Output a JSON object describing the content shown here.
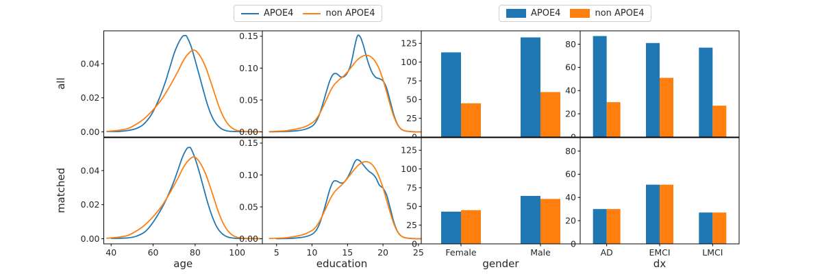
{
  "colors": {
    "apoe4": "#1f77b4",
    "non_apoe4": "#ff7f0e",
    "text": "#262626",
    "spine": "#000000",
    "background": "#ffffff"
  },
  "legend_lines": {
    "items": [
      {
        "label": "APOE4",
        "color": "#1f77b4"
      },
      {
        "label": "non APOE4",
        "color": "#ff7f0e"
      }
    ]
  },
  "legend_bars": {
    "items": [
      {
        "label": "APOE4",
        "color": "#1f77b4"
      },
      {
        "label": "non APOE4",
        "color": "#ff7f0e"
      }
    ]
  },
  "rows": [
    {
      "label": "all"
    },
    {
      "label": "matched"
    }
  ],
  "chart_data": [
    {
      "type": "line",
      "row": "all",
      "col": "age",
      "xlabel": "",
      "xlim": [
        36.5,
        112
      ],
      "ylim": [
        -0.003,
        0.0593
      ],
      "yticks": [
        {
          "v": 0,
          "label": "0.00"
        },
        {
          "v": 0.02,
          "label": "0.02"
        },
        {
          "v": 0.04,
          "label": "0.04"
        }
      ],
      "xticks": [],
      "series": [
        {
          "name": "APOE4",
          "color": "#1f77b4",
          "x": [
            38,
            44,
            48,
            52,
            55,
            58,
            60,
            62,
            64,
            66,
            68,
            70,
            72,
            74,
            75.2,
            76,
            78,
            80,
            82,
            84,
            86,
            88,
            90,
            92,
            94,
            96,
            100,
            105,
            111
          ],
          "y": [
            0.0002,
            0.0003,
            0.0008,
            0.002,
            0.004,
            0.008,
            0.012,
            0.017,
            0.023,
            0.03,
            0.038,
            0.046,
            0.052,
            0.056,
            0.0565,
            0.056,
            0.0505,
            0.042,
            0.033,
            0.024,
            0.0155,
            0.009,
            0.0048,
            0.0023,
            0.001,
            0.0004,
            0.0002,
            0.0001,
            0.0001
          ]
        },
        {
          "name": "non APOE4",
          "color": "#ff7f0e",
          "x": [
            38,
            44,
            48,
            52,
            56,
            60,
            64,
            68,
            72,
            74,
            76,
            78,
            79.5,
            81,
            83,
            85,
            87,
            89,
            91,
            93,
            95,
            97,
            99,
            101,
            105,
            111
          ],
          "y": [
            0.0003,
            0.001,
            0.002,
            0.0045,
            0.008,
            0.013,
            0.019,
            0.027,
            0.036,
            0.041,
            0.0448,
            0.0473,
            0.048,
            0.0468,
            0.0432,
            0.038,
            0.031,
            0.0235,
            0.016,
            0.01,
            0.0056,
            0.0028,
            0.0013,
            0.0006,
            0.0002,
            0.0001
          ]
        }
      ]
    },
    {
      "type": "line",
      "row": "all",
      "col": "education",
      "xlabel": "",
      "xlim": [
        3.0,
        25.4
      ],
      "ylim": [
        -0.008,
        0.1585
      ],
      "yticks": [
        {
          "v": 0,
          "label": "0.00"
        },
        {
          "v": 0.05,
          "label": "0.05"
        },
        {
          "v": 0.1,
          "label": "0.10"
        },
        {
          "v": 0.15,
          "label": "0.15"
        }
      ],
      "xticks": [],
      "series": [
        {
          "name": "APOE4",
          "color": "#1f77b4",
          "x": [
            4,
            6.5,
            8,
            9,
            10,
            10.5,
            11,
            11.5,
            12,
            12.5,
            13,
            13.5,
            14,
            14.5,
            15,
            15.5,
            16,
            16.4,
            16.8,
            17.2,
            17.6,
            18,
            18.5,
            19,
            19.5,
            20,
            20.5,
            21,
            21.5,
            22,
            22.5,
            23,
            24,
            25.4
          ],
          "y": [
            0.0002,
            0.0008,
            0.002,
            0.004,
            0.009,
            0.015,
            0.026,
            0.043,
            0.062,
            0.08,
            0.0905,
            0.091,
            0.0865,
            0.0865,
            0.093,
            0.107,
            0.133,
            0.1505,
            0.149,
            0.137,
            0.121,
            0.106,
            0.0925,
            0.0855,
            0.0835,
            0.08,
            0.069,
            0.049,
            0.028,
            0.013,
            0.005,
            0.002,
            0.0004,
            0.0001
          ]
        },
        {
          "name": "non APOE4",
          "color": "#ff7f0e",
          "x": [
            4,
            6,
            7,
            8,
            9,
            10,
            10.5,
            11,
            11.5,
            12,
            12.5,
            13,
            13.5,
            14,
            14.5,
            15,
            15.5,
            16,
            16.5,
            17,
            17.5,
            18,
            18.5,
            19,
            19.5,
            20,
            20.5,
            21,
            21.5,
            22,
            22.5,
            23,
            24,
            25.4
          ],
          "y": [
            0.0005,
            0.0015,
            0.003,
            0.005,
            0.008,
            0.014,
            0.019,
            0.027,
            0.038,
            0.05,
            0.062,
            0.072,
            0.0785,
            0.0835,
            0.088,
            0.094,
            0.101,
            0.108,
            0.114,
            0.118,
            0.12,
            0.1195,
            0.116,
            0.109,
            0.098,
            0.082,
            0.063,
            0.043,
            0.025,
            0.0125,
            0.005,
            0.002,
            0.0005,
            0.0001
          ]
        }
      ]
    },
    {
      "type": "bar",
      "row": "all",
      "col": "gender",
      "xlabel": "",
      "categories": [
        "Female",
        "Male"
      ],
      "show_xticklabels": false,
      "ylim": [
        0,
        141.75
      ],
      "yticks": [
        {
          "v": 0,
          "label": "0"
        },
        {
          "v": 25,
          "label": "25"
        },
        {
          "v": 50,
          "label": "50"
        },
        {
          "v": 75,
          "label": "75"
        },
        {
          "v": 100,
          "label": "100"
        },
        {
          "v": 125,
          "label": "125"
        }
      ],
      "series": [
        {
          "name": "APOE4",
          "color": "#1f77b4",
          "values": [
            113,
            133
          ]
        },
        {
          "name": "non APOE4",
          "color": "#ff7f0e",
          "values": [
            45,
            60
          ]
        }
      ]
    },
    {
      "type": "bar",
      "row": "all",
      "col": "dx",
      "xlabel": "",
      "categories": [
        "AD",
        "EMCI",
        "LMCI"
      ],
      "show_xticklabels": false,
      "ylim": [
        0,
        91.5
      ],
      "yticks": [
        {
          "v": 0,
          "label": "0"
        },
        {
          "v": 20,
          "label": "20"
        },
        {
          "v": 40,
          "label": "40"
        },
        {
          "v": 60,
          "label": "60"
        },
        {
          "v": 80,
          "label": "80"
        }
      ],
      "series": [
        {
          "name": "APOE4",
          "color": "#1f77b4",
          "values": [
            87,
            81,
            77
          ]
        },
        {
          "name": "non APOE4",
          "color": "#ff7f0e",
          "values": [
            30,
            51,
            27
          ]
        }
      ]
    },
    {
      "type": "line",
      "row": "matched",
      "col": "age",
      "xlabel": "age",
      "xlim": [
        36.5,
        112
      ],
      "ylim": [
        -0.003,
        0.0593
      ],
      "yticks": [
        {
          "v": 0,
          "label": "0.00"
        },
        {
          "v": 0.02,
          "label": "0.02"
        },
        {
          "v": 0.04,
          "label": "0.04"
        }
      ],
      "xticks": [
        {
          "v": 40,
          "label": "40"
        },
        {
          "v": 60,
          "label": "60"
        },
        {
          "v": 80,
          "label": "80"
        },
        {
          "v": 100,
          "label": "100"
        }
      ],
      "series": [
        {
          "name": "APOE4",
          "color": "#1f77b4",
          "x": [
            40,
            48,
            52,
            56,
            59,
            62,
            65,
            68,
            70,
            72,
            74,
            76,
            77,
            78,
            80,
            82,
            84,
            86,
            88,
            90,
            92,
            94,
            96,
            100,
            105,
            111
          ],
          "y": [
            0.0002,
            0.0005,
            0.0015,
            0.004,
            0.008,
            0.0135,
            0.02,
            0.028,
            0.034,
            0.041,
            0.048,
            0.0528,
            0.0535,
            0.053,
            0.047,
            0.039,
            0.03,
            0.021,
            0.0135,
            0.0077,
            0.004,
            0.0019,
            0.0008,
            0.0002,
            0.0001,
            0.0001
          ]
        },
        {
          "name": "non APOE4",
          "color": "#ff7f0e",
          "x": [
            38,
            44,
            48,
            52,
            56,
            60,
            64,
            68,
            72,
            74,
            76,
            78,
            79.5,
            81,
            83,
            85,
            87,
            89,
            91,
            93,
            95,
            97,
            99,
            101,
            105,
            111
          ],
          "y": [
            0.0003,
            0.001,
            0.002,
            0.0045,
            0.008,
            0.013,
            0.019,
            0.027,
            0.036,
            0.041,
            0.0448,
            0.0473,
            0.048,
            0.0468,
            0.0432,
            0.038,
            0.031,
            0.0235,
            0.016,
            0.01,
            0.0056,
            0.0028,
            0.0013,
            0.0006,
            0.0002,
            0.0001
          ]
        }
      ]
    },
    {
      "type": "line",
      "row": "matched",
      "col": "education",
      "xlabel": "education",
      "xlim": [
        3.0,
        25.4
      ],
      "ylim": [
        -0.008,
        0.1585
      ],
      "yticks": [
        {
          "v": 0,
          "label": "0.00"
        },
        {
          "v": 0.05,
          "label": "0.05"
        },
        {
          "v": 0.1,
          "label": "0.10"
        },
        {
          "v": 0.15,
          "label": "0.15"
        }
      ],
      "xticks": [
        {
          "v": 5,
          "label": "5"
        },
        {
          "v": 10,
          "label": "10"
        },
        {
          "v": 15,
          "label": "15"
        },
        {
          "v": 20,
          "label": "20"
        },
        {
          "v": 25,
          "label": "25"
        }
      ],
      "series": [
        {
          "name": "APOE4",
          "color": "#1f77b4",
          "x": [
            5,
            7,
            8,
            9,
            10,
            10.5,
            11,
            11.5,
            12,
            12.5,
            13,
            13.5,
            14,
            14.5,
            15,
            15.5,
            16,
            16.3,
            16.7,
            17,
            17.5,
            18,
            18.5,
            19,
            19.5,
            20,
            20.5,
            21,
            21.5,
            22,
            22.5,
            23,
            24,
            25.4
          ],
          "y": [
            0.0001,
            0.0006,
            0.0015,
            0.003,
            0.007,
            0.012,
            0.022,
            0.038,
            0.057,
            0.077,
            0.0895,
            0.0905,
            0.0875,
            0.0885,
            0.096,
            0.107,
            0.12,
            0.124,
            0.1225,
            0.119,
            0.112,
            0.106,
            0.102,
            0.0955,
            0.084,
            0.0795,
            0.069,
            0.049,
            0.0275,
            0.0125,
            0.005,
            0.002,
            0.0004,
            0.0001
          ]
        },
        {
          "name": "non APOE4",
          "color": "#ff7f0e",
          "x": [
            4,
            6,
            7,
            8,
            9,
            10,
            10.5,
            11,
            11.5,
            12,
            12.5,
            13,
            13.5,
            14,
            14.5,
            15,
            15.5,
            16,
            16.5,
            17,
            17.5,
            18,
            18.5,
            19,
            19.5,
            20,
            20.5,
            21,
            21.5,
            22,
            22.5,
            23,
            24,
            25.4
          ],
          "y": [
            0.0004,
            0.0012,
            0.0025,
            0.0045,
            0.0075,
            0.013,
            0.018,
            0.026,
            0.037,
            0.049,
            0.061,
            0.071,
            0.0775,
            0.0825,
            0.088,
            0.095,
            0.102,
            0.109,
            0.115,
            0.119,
            0.121,
            0.12,
            0.116,
            0.108,
            0.096,
            0.08,
            0.061,
            0.042,
            0.0245,
            0.012,
            0.005,
            0.002,
            0.0005,
            0.0001
          ]
        }
      ]
    },
    {
      "type": "bar",
      "row": "matched",
      "col": "gender",
      "xlabel": "gender",
      "categories": [
        "Female",
        "Male"
      ],
      "show_xticklabels": true,
      "ylim": [
        0,
        141.75
      ],
      "yticks": [
        {
          "v": 0,
          "label": "0"
        },
        {
          "v": 25,
          "label": "25"
        },
        {
          "v": 50,
          "label": "50"
        },
        {
          "v": 75,
          "label": "75"
        },
        {
          "v": 100,
          "label": "100"
        },
        {
          "v": 125,
          "label": "125"
        }
      ],
      "series": [
        {
          "name": "APOE4",
          "color": "#1f77b4",
          "values": [
            43,
            64
          ]
        },
        {
          "name": "non APOE4",
          "color": "#ff7f0e",
          "values": [
            45,
            60
          ]
        }
      ]
    },
    {
      "type": "bar",
      "row": "matched",
      "col": "dx",
      "xlabel": "dx",
      "categories": [
        "AD",
        "EMCI",
        "LMCI"
      ],
      "show_xticklabels": true,
      "ylim": [
        0,
        91.5
      ],
      "yticks": [
        {
          "v": 0,
          "label": "0"
        },
        {
          "v": 20,
          "label": "20"
        },
        {
          "v": 40,
          "label": "40"
        },
        {
          "v": 60,
          "label": "60"
        },
        {
          "v": 80,
          "label": "80"
        }
      ],
      "series": [
        {
          "name": "APOE4",
          "color": "#1f77b4",
          "values": [
            30,
            51,
            27
          ]
        },
        {
          "name": "non APOE4",
          "color": "#ff7f0e",
          "values": [
            30,
            51,
            27
          ]
        }
      ]
    }
  ]
}
